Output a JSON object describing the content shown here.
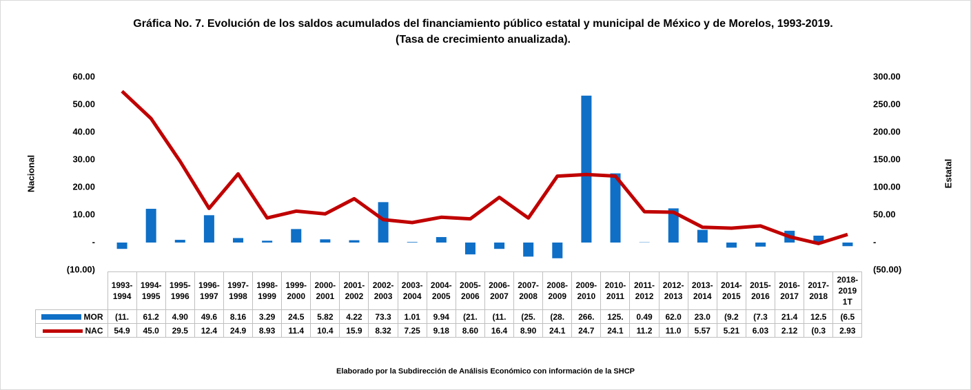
{
  "chart_data": {
    "type": "bar_line",
    "title": "Gráfica No. 7. Evolución de los saldos acumulados del financiamiento público estatal y municipal de México y de Morelos, 1993-2019. (Tasa de crecimiento anualizada).",
    "y_label": "Nacional",
    "y2_label": "Estatal",
    "source": "Elaborado por la Subdirección de Análisis Económico con información de la SHCP",
    "categories": [
      "1993-1994",
      "1994-1995",
      "1995-1996",
      "1996-1997",
      "1997-1998",
      "1998-1999",
      "1999-2000",
      "2000-2001",
      "2001-2002",
      "2002-2003",
      "2003-2004",
      "2004-2005",
      "2005-2006",
      "2006-2007",
      "2007-2008",
      "2008-2009",
      "2009-2010",
      "2010-2011",
      "2011-2012",
      "2012-2013",
      "2013-2014",
      "2014-2015",
      "2015-2016",
      "2016-2017",
      "2017-2018",
      "2018-2019 1T"
    ],
    "ylim": [
      -10,
      60
    ],
    "yticks": [
      {
        "value": -10,
        "label": "(10.00)"
      },
      {
        "value": 0,
        "label": "-"
      },
      {
        "value": 10,
        "label": "10.00"
      },
      {
        "value": 20,
        "label": "20.00"
      },
      {
        "value": 30,
        "label": "30.00"
      },
      {
        "value": 40,
        "label": "40.00"
      },
      {
        "value": 50,
        "label": "50.00"
      },
      {
        "value": 60,
        "label": "60.00"
      }
    ],
    "y2lim": [
      -50,
      300
    ],
    "y2ticks": [
      {
        "value": -50,
        "label": "(50.00)"
      },
      {
        "value": 0,
        "label": "-"
      },
      {
        "value": 50,
        "label": "50.00"
      },
      {
        "value": 100,
        "label": "100.00"
      },
      {
        "value": 150,
        "label": "150.00"
      },
      {
        "value": 200,
        "label": "200.00"
      },
      {
        "value": 250,
        "label": "250.00"
      },
      {
        "value": 300,
        "label": "300.00"
      }
    ],
    "series": [
      {
        "name": "MOR",
        "type": "bar",
        "axis": "y2",
        "color": "#0f6fc6",
        "values": [
          -11.5,
          61.2,
          4.9,
          49.6,
          8.16,
          3.29,
          24.5,
          5.82,
          4.22,
          73.3,
          1.01,
          9.94,
          -21.5,
          -11.5,
          -25.5,
          -28.5,
          266.5,
          125.5,
          0.49,
          62.0,
          23.0,
          -9.25,
          -7.35,
          21.4,
          12.5,
          -6.55
        ],
        "value_labels": [
          "(11.",
          "61.2",
          "4.90",
          "49.6",
          "8.16",
          "3.29",
          "24.5",
          "5.82",
          "4.22",
          "73.3",
          "1.01",
          "9.94",
          "(21.",
          "(11.",
          "(25.",
          "(28.",
          "266.",
          "125.",
          "0.49",
          "62.0",
          "23.0",
          "(9.2",
          "(7.3",
          "21.4",
          "12.5",
          "(6.5"
        ]
      },
      {
        "name": "NAC",
        "type": "line",
        "axis": "y",
        "color": "#c00000",
        "values": [
          54.9,
          45.0,
          29.5,
          12.4,
          24.9,
          8.93,
          11.4,
          10.4,
          15.9,
          8.32,
          7.25,
          9.18,
          8.6,
          16.4,
          8.9,
          24.1,
          24.7,
          24.1,
          11.2,
          11.0,
          5.57,
          5.21,
          6.03,
          2.12,
          -0.35,
          2.93
        ],
        "value_labels": [
          "54.9",
          "45.0",
          "29.5",
          "12.4",
          "24.9",
          "8.93",
          "11.4",
          "10.4",
          "15.9",
          "8.32",
          "7.25",
          "9.18",
          "8.60",
          "16.4",
          "8.90",
          "24.1",
          "24.7",
          "24.1",
          "11.2",
          "11.0",
          "5.57",
          "5.21",
          "6.03",
          "2.12",
          "(0.3",
          "2.93"
        ]
      }
    ]
  }
}
